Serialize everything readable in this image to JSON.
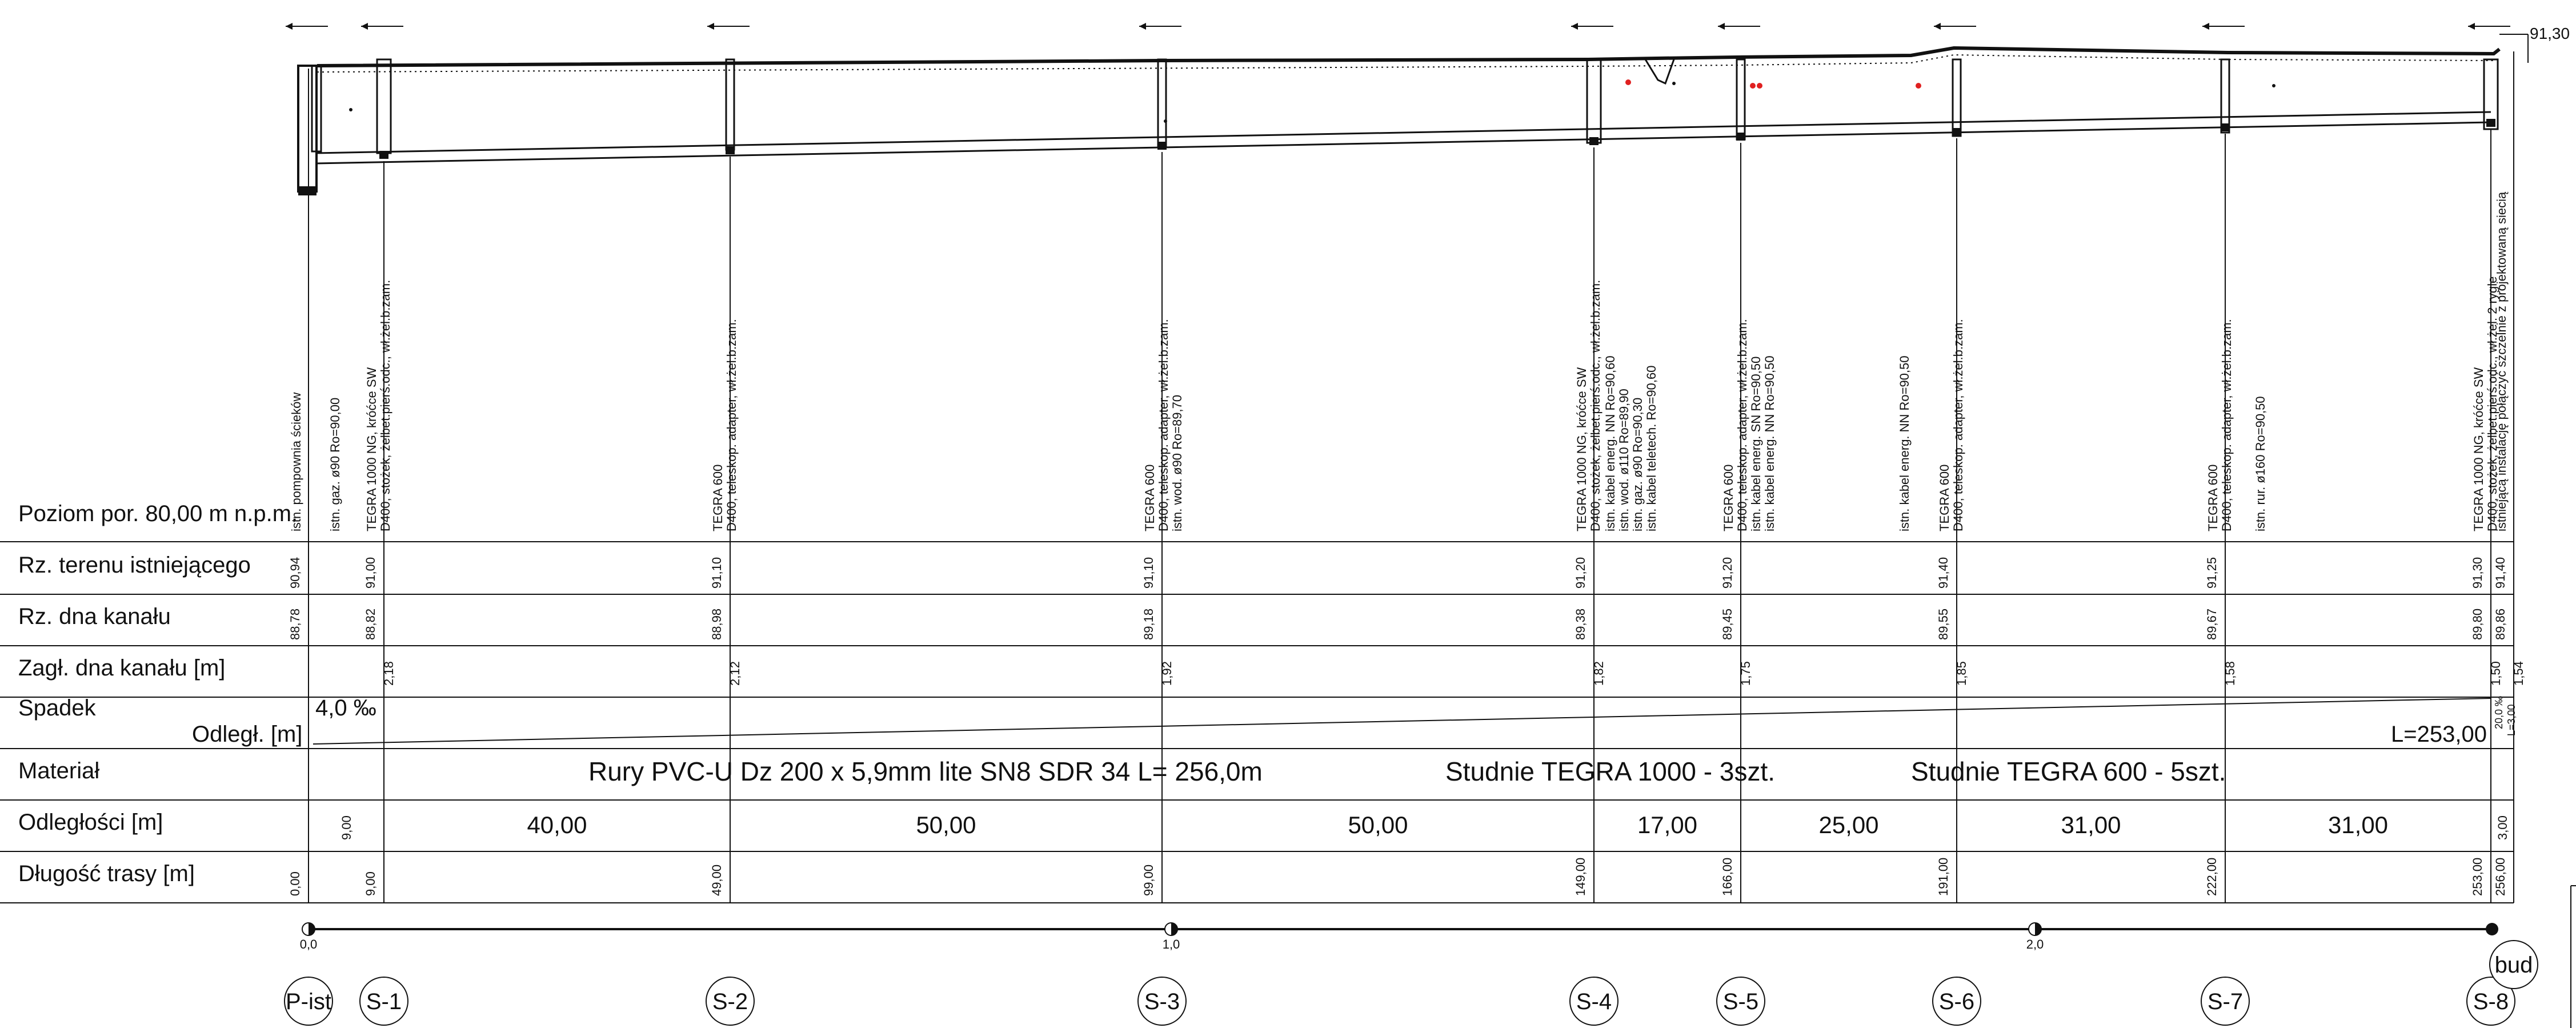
{
  "title_level": "Poziom por. 80,00 m n.p.m.",
  "row_labels": {
    "ground": "Rz. terenu istniejącego",
    "invert": "Rz. dna kanału",
    "depth": "Zagł. dna kanału [m]",
    "slope": "Spadek",
    "distance": "Odległ. [m]",
    "material": "Materiał",
    "spacing": "Odległości [m]",
    "length": "Długość trasy [m]"
  },
  "slope_value": "4,0 ‰",
  "total_length": "L=253,00",
  "small_note": "L=3,00",
  "small_slope": "20,0 ‰",
  "top_level": "91,30",
  "material_texts": [
    "Rury PVC-U Dz 200 x 5,9mm lite SN8 SDR 34 L= 256,0m",
    "Studnie TEGRA 1000 - 3szt.",
    "Studnie TEGRA 600 - 5szt."
  ],
  "stations": [
    {
      "id": "P-ist",
      "ground": "90,94",
      "invert": "88,78",
      "depth": "",
      "length": "0,00"
    },
    {
      "id": "S-1",
      "ground": "91,00",
      "invert": "88,82",
      "depth": "2,18",
      "length": "9,00"
    },
    {
      "id": "S-2",
      "ground": "91,10",
      "invert": "88,98",
      "depth": "2,12",
      "length": "49,00"
    },
    {
      "id": "S-3",
      "ground": "91,10",
      "invert": "89,18",
      "depth": "1,92",
      "length": "99,00"
    },
    {
      "id": "S-4",
      "ground": "91,20",
      "invert": "89,38",
      "depth": "1,82",
      "length": "149,00"
    },
    {
      "id": "S-5",
      "ground": "91,20",
      "invert": "89,45",
      "depth": "1,75",
      "length": "166,00"
    },
    {
      "id": "S-6",
      "ground": "91,40",
      "invert": "89,55",
      "depth": "1,85",
      "length": "191,00"
    },
    {
      "id": "S-7",
      "ground": "91,25",
      "invert": "89,67",
      "depth": "1,58",
      "length": "222,00"
    },
    {
      "id": "S-8",
      "ground": "91,30",
      "invert": "89,80",
      "depth": "1,50",
      "length": "253,00"
    },
    {
      "id": "bud",
      "ground": "91,40",
      "invert": "89,86",
      "depth": "1,54",
      "length": "256,00"
    }
  ],
  "spacings": [
    "9,00",
    "40,00",
    "50,00",
    "50,00",
    "17,00",
    "25,00",
    "31,00",
    "31,00",
    "3,00"
  ],
  "scale_ticks": [
    "0,0",
    "1,0",
    "2,0"
  ],
  "vertical_notes": [
    {
      "station": "P-ist",
      "lines": [
        "istn. pompownia ścieków"
      ]
    },
    {
      "station": "gas-1",
      "lines": [
        "istn. gaz. ø90  Ro=90,00"
      ]
    },
    {
      "station": "S-1",
      "lines": [
        "TEGRA 1000 NG, króćce SW",
        "D400, stożek, żelbet.pierś.odc., wł.żel.b.zam."
      ]
    },
    {
      "station": "S-2",
      "lines": [
        "TEGRA 600",
        "D400, teleskop. adapter, wł.żel.b.zam."
      ]
    },
    {
      "station": "S-3",
      "lines": [
        "TEGRA 600",
        "D400, teleskop. adapter, wł.żel.b.zam.",
        "istn. wod. ø90  Ro=89,70"
      ]
    },
    {
      "station": "S-4",
      "lines": [
        "TEGRA 1000 NG, króćce SW",
        "D400, stożek, żelbet.pierś.odc., wł.żel.b.zam."
      ]
    },
    {
      "station": "S-4-utils",
      "lines": [
        "istn. kabel energ. NN  Ro=90,60",
        "istn. wod. ø110  Ro=89,90",
        "istn. gaz. ø90  Ro=90,30",
        "istn. kabel teletech.  Ro=90,60"
      ]
    },
    {
      "station": "S-5",
      "lines": [
        "TEGRA 600",
        "D400, teleskop. adapter, wł.żel.b.zam.",
        "istn. kabel energ. SN  Ro=90,50",
        "istn. kabel energ. NN  Ro=90,50"
      ]
    },
    {
      "station": "S-6-util",
      "lines": [
        "istn. kabel energ. NN  Ro=90,50"
      ]
    },
    {
      "station": "S-6",
      "lines": [
        "TEGRA 600",
        "D400, teleskop. adapter, wł.żel.b.zam."
      ]
    },
    {
      "station": "S-7",
      "lines": [
        "TEGRA 600",
        "D400, teleskop. adapter, wł.żel.b.zam."
      ]
    },
    {
      "station": "S-7-util",
      "lines": [
        "istn. rur. ø160  Ro=90,50"
      ]
    },
    {
      "station": "S-8",
      "lines": [
        "TEGRA 1000 NG, króćce SW",
        "D400, stożek, żelbet.pierś.odc., wł.żel. 2 rygle"
      ]
    },
    {
      "station": "bud",
      "lines": [
        "istniejącą instalację połączyć szczelnie z projektowaną siecią"
      ]
    }
  ],
  "colors": {
    "line": "#111111",
    "marker": "#e02020"
  }
}
